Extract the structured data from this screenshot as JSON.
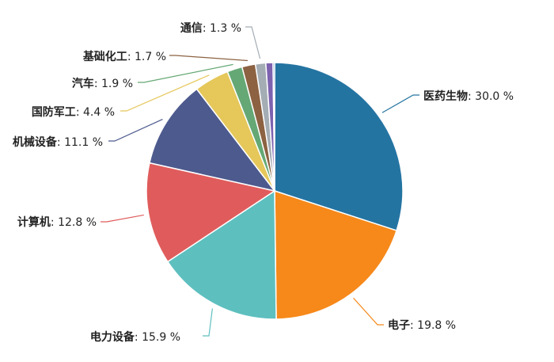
{
  "chart_data": {
    "type": "pie",
    "title": "",
    "unit": "%",
    "legend": "none",
    "slices": [
      {
        "label": "医药生物",
        "value": 30.0,
        "value_text": "30.0 %",
        "color": "#2474a2"
      },
      {
        "label": "电子",
        "value": 19.8,
        "value_text": "19.8 %",
        "color": "#f6891a"
      },
      {
        "label": "电力设备",
        "value": 15.9,
        "value_text": "15.9 %",
        "color": "#5ebfbf"
      },
      {
        "label": "计算机",
        "value": 12.8,
        "value_text": "12.8 %",
        "color": "#e05c5c"
      },
      {
        "label": "机械设备",
        "value": 11.1,
        "value_text": "11.1 %",
        "color": "#4d5a8e"
      },
      {
        "label": "国防军工",
        "value": 4.4,
        "value_text": "4.4 %",
        "color": "#e5c75a"
      },
      {
        "label": "汽车",
        "value": 1.9,
        "value_text": "1.9 %",
        "color": "#65a875"
      },
      {
        "label": "基础化工",
        "value": 1.7,
        "value_text": "1.7 %",
        "color": "#8c6242"
      },
      {
        "label": "通信",
        "value": 1.3,
        "value_text": "1.3 %",
        "color": "#a4acb4"
      },
      {
        "label": "",
        "value": 0.9,
        "value_text": "",
        "color": "#7d62b0"
      },
      {
        "label": "",
        "value": 0.2,
        "value_text": "",
        "color": "#3a7ab8"
      }
    ]
  }
}
